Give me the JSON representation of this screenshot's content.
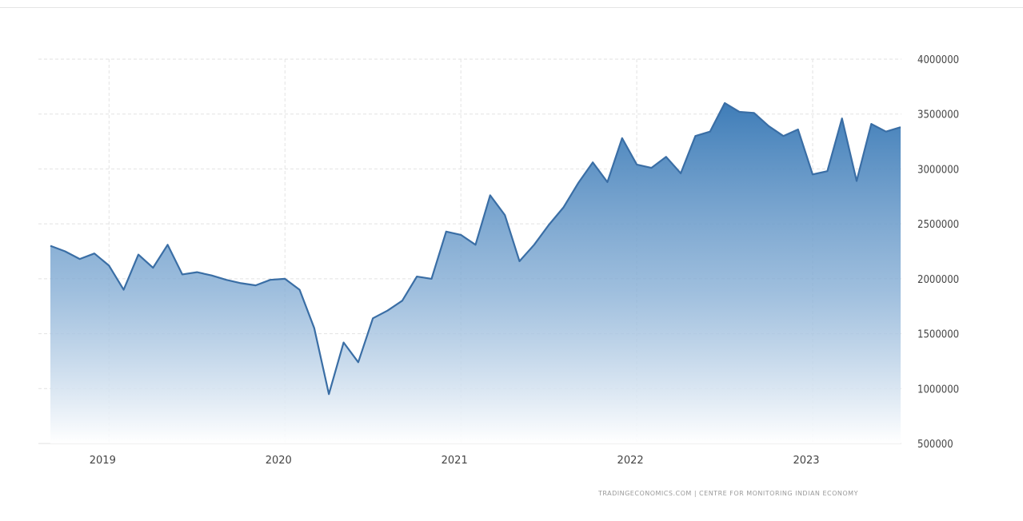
{
  "chart_data": {
    "type": "area",
    "title": "",
    "xlabel": "",
    "ylabel": "",
    "x_ticks": [
      "2019",
      "2020",
      "2021",
      "2022",
      "2023"
    ],
    "y_ticks": [
      "500000",
      "1000000",
      "1500000",
      "2000000",
      "2500000",
      "3000000",
      "3500000",
      "4000000"
    ],
    "ylim": [
      500000,
      4000000
    ],
    "xlim": [
      "2018-08",
      "2023-07"
    ],
    "grid": true,
    "color": "#3f7db8",
    "series": [
      {
        "name": "",
        "x": [
          "2018-09",
          "2018-10",
          "2018-11",
          "2018-12",
          "2019-01",
          "2019-02",
          "2019-03",
          "2019-04",
          "2019-05",
          "2019-06",
          "2019-07",
          "2019-08",
          "2019-09",
          "2019-10",
          "2019-11",
          "2019-12",
          "2020-01",
          "2020-02",
          "2020-03",
          "2020-04",
          "2020-05",
          "2020-06",
          "2020-07",
          "2020-08",
          "2020-09",
          "2020-10",
          "2020-11",
          "2020-12",
          "2021-01",
          "2021-02",
          "2021-03",
          "2021-04",
          "2021-05",
          "2021-06",
          "2021-07",
          "2021-08",
          "2021-09",
          "2021-10",
          "2021-11",
          "2021-12",
          "2022-01",
          "2022-02",
          "2022-03",
          "2022-04",
          "2022-05",
          "2022-06",
          "2022-07",
          "2022-08",
          "2022-09",
          "2022-10",
          "2022-11",
          "2022-12",
          "2023-01",
          "2023-02",
          "2023-03",
          "2023-04",
          "2023-05",
          "2023-06",
          "2023-07"
        ],
        "values": [
          2300000,
          2250000,
          2180000,
          2230000,
          2120000,
          1900000,
          2220000,
          2100000,
          2310000,
          2040000,
          2060000,
          2030000,
          1990000,
          1960000,
          1940000,
          1990000,
          2000000,
          1900000,
          1550000,
          950000,
          1420000,
          1240000,
          1640000,
          1710000,
          1800000,
          2020000,
          2000000,
          2430000,
          2400000,
          2310000,
          2760000,
          2580000,
          2160000,
          2310000,
          2490000,
          2650000,
          2870000,
          3060000,
          2880000,
          3280000,
          3040000,
          3010000,
          3110000,
          2960000,
          3300000,
          3340000,
          3600000,
          3520000,
          3510000,
          3390000,
          3300000,
          3360000,
          2950000,
          2980000,
          3460000,
          2890000,
          3410000,
          3340000,
          3380000
        ]
      }
    ]
  },
  "source_text": "TRADINGECONOMICS.COM  |  CENTRE FOR MONITORING INDIAN ECONOMY"
}
